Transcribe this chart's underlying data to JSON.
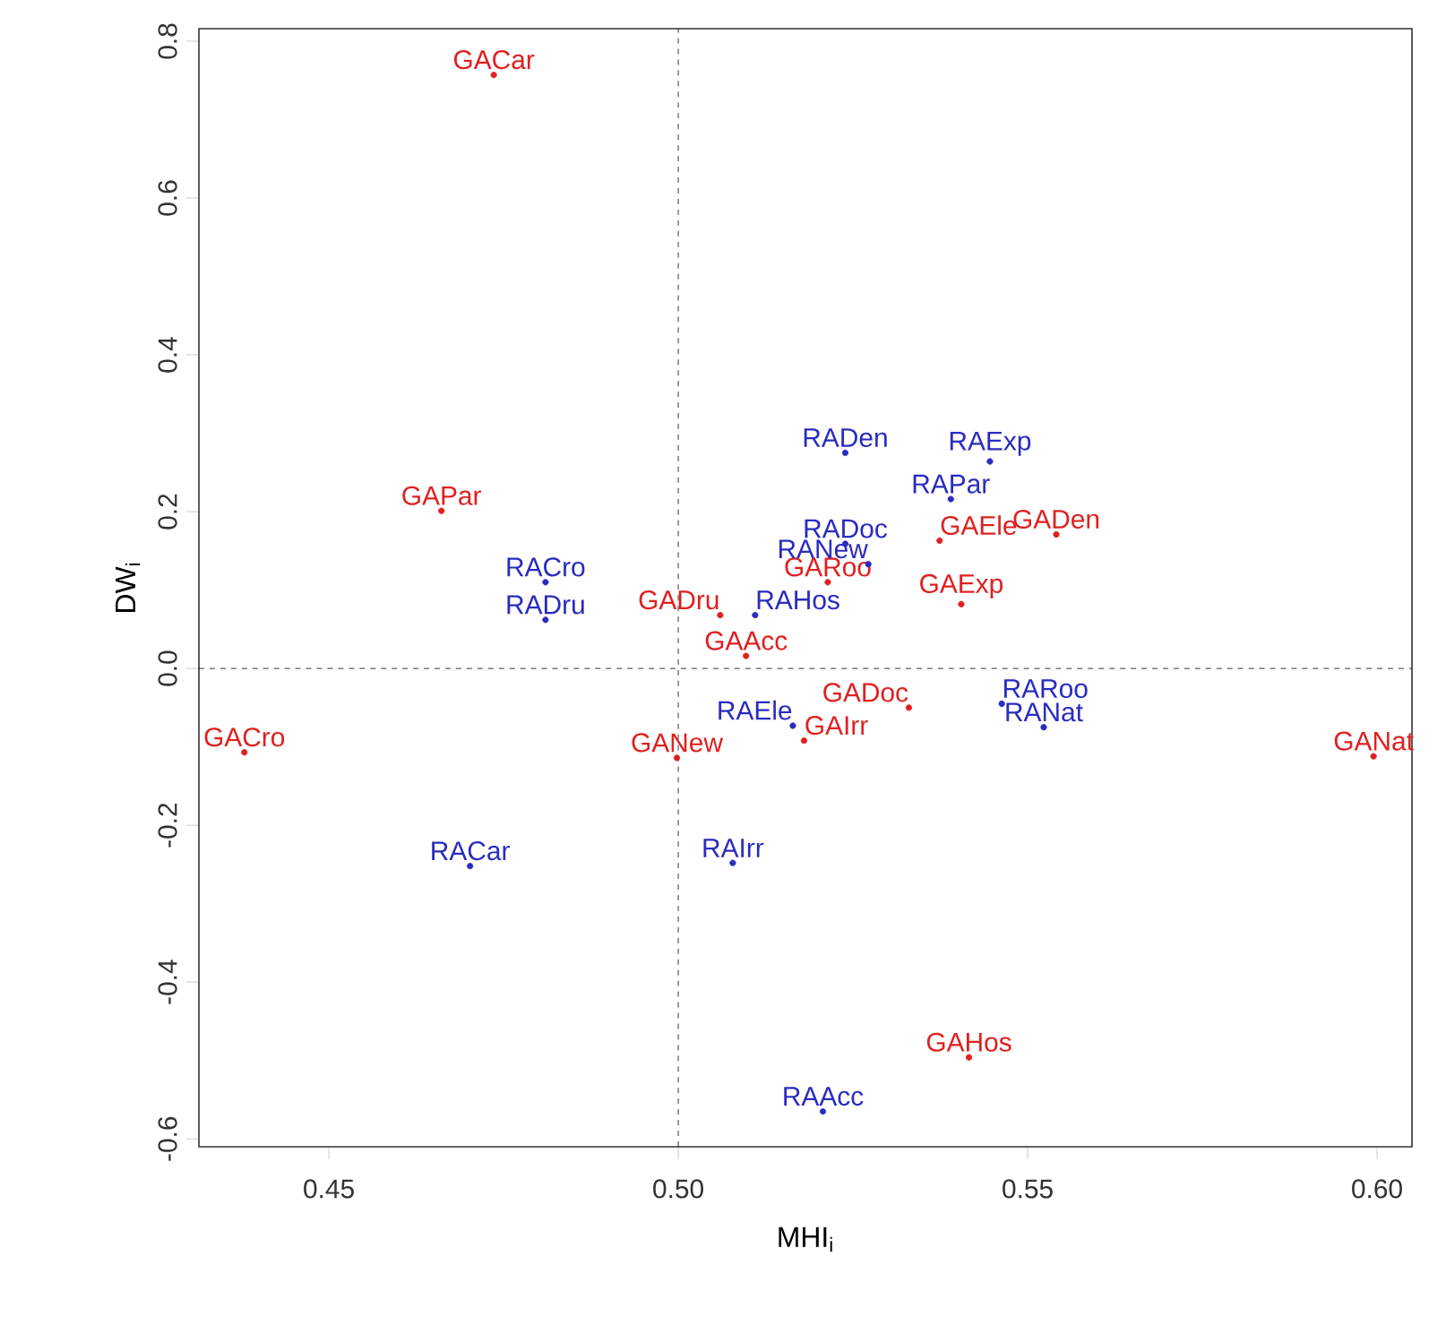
{
  "chart_data": {
    "type": "scatter",
    "xlabel": "MHI$_{i}$",
    "ylabel": "DW$_{i}$",
    "marker": "circle",
    "xlim": [
      0.4314,
      0.605
    ],
    "ylim": [
      -0.61,
      0.816
    ],
    "xticks": [
      {
        "value": 0.45,
        "label": "0.45"
      },
      {
        "value": 0.5,
        "label": "0.50"
      },
      {
        "value": 0.55,
        "label": "0.55"
      },
      {
        "value": 0.6,
        "label": "0.60"
      }
    ],
    "yticks": [
      -0.6,
      -0.4,
      -0.2,
      {
        "value": 0,
        "label": "0.0"
      },
      0.2,
      0.4,
      0.6,
      0.8
    ],
    "ref_lines": [
      {
        "axis": "x",
        "value": 0.5,
        "line_style": "dashed"
      },
      {
        "axis": "y",
        "value": 0,
        "line_style": "dashed"
      }
    ],
    "series": [
      {
        "color": "#e02020",
        "x": [
          0.5097,
          0.4736,
          0.4379,
          0.5541,
          0.533,
          0.506,
          0.5374,
          0.5405,
          0.5416,
          0.518,
          0.5995,
          0.4998,
          0.4661,
          0.5214
        ],
        "values": [
          0.016,
          0.757,
          -0.107,
          0.171,
          -0.05,
          0.068,
          0.163,
          0.082,
          -0.496,
          -0.092,
          -0.112,
          -0.114,
          0.201,
          0.11
        ],
        "value_labels": [
          "GAAcc",
          "GACar",
          "GACro",
          "GADen",
          "GADoc",
          "GADru",
          "GAEle",
          "GAExp",
          "GAHos",
          "GAIrr",
          "GANat",
          "GANew",
          "GAPar",
          "GARoo"
        ]
      },
      {
        "color": "#2b2bc0",
        "x": [
          0.5207,
          0.4702,
          0.481,
          0.5239,
          0.5239,
          0.481,
          0.5164,
          0.5446,
          0.511,
          0.5078,
          0.5523,
          0.5272,
          0.539,
          0.5463
        ],
        "values": [
          -0.565,
          -0.252,
          0.11,
          0.275,
          0.159,
          0.062,
          -0.073,
          0.264,
          0.068,
          -0.248,
          -0.075,
          0.133,
          0.216,
          -0.045
        ],
        "value_labels": [
          "RAAcc",
          "RACar",
          "RACro",
          "RADen",
          "RADoc",
          "RADru",
          "RAEle",
          "RAExp",
          "RAHos",
          "RAIrr",
          "RANat",
          "RANew",
          "RAPar",
          "RARoo"
        ]
      }
    ]
  }
}
